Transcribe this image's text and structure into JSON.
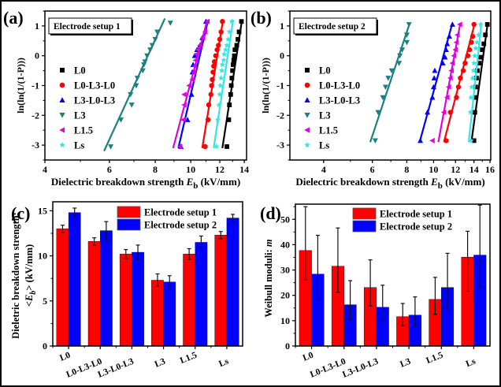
{
  "chart_data": [
    {
      "panel_label": "(a)",
      "type": "scatter",
      "title": "",
      "annotation": "Electrode setup 1",
      "xlabel": "Dielectric breakdown strength E_b (kV/mm)",
      "xlabel_parts": {
        "pre": "Dielectric breakdown strength ",
        "var": "E",
        "sub": "b",
        "post": " (kV/mm)"
      },
      "ylabel": "ln(ln(1/(1-P)))",
      "xscale": "log",
      "xlim": [
        4,
        14.2
      ],
      "ylim": [
        -3.5,
        1.5
      ],
      "xticks": [
        4,
        6,
        8,
        10,
        12,
        14
      ],
      "yticks": [
        -3,
        -2,
        -1,
        0,
        1
      ],
      "legend_position": "left",
      "series": [
        {
          "name": "L0",
          "color": "#000000",
          "marker": "square",
          "fit": [
            [
              12.2,
              -3.1
            ],
            [
              13.8,
              1.2
            ]
          ],
          "points": [
            [
              12.55,
              -3.05
            ],
            [
              12.7,
              -2.15
            ],
            [
              12.75,
              -1.65
            ],
            [
              12.85,
              -1.3
            ],
            [
              12.9,
              -1.0
            ],
            [
              12.95,
              -0.75
            ],
            [
              13.0,
              -0.5
            ],
            [
              13.05,
              -0.3
            ],
            [
              13.1,
              -0.15
            ],
            [
              13.15,
              0.0
            ],
            [
              13.2,
              0.2
            ],
            [
              13.35,
              0.35
            ],
            [
              13.45,
              0.55
            ],
            [
              13.55,
              0.8
            ],
            [
              13.75,
              1.15
            ]
          ]
        },
        {
          "name": "L0-L3-L0",
          "color": "#ff0000",
          "marker": "circle",
          "fit": [
            [
              10.75,
              -3.1
            ],
            [
              12.25,
              1.2
            ]
          ],
          "points": [
            [
              10.95,
              -3.05
            ],
            [
              11.15,
              -2.15
            ],
            [
              11.2,
              -1.65
            ],
            [
              11.35,
              -1.3
            ],
            [
              11.4,
              -1.0
            ],
            [
              11.45,
              -0.8
            ],
            [
              11.5,
              -0.55
            ],
            [
              11.55,
              -0.35
            ],
            [
              11.6,
              -0.2
            ],
            [
              11.7,
              0.0
            ],
            [
              11.8,
              0.2
            ],
            [
              11.9,
              0.35
            ],
            [
              12.0,
              0.55
            ],
            [
              12.1,
              0.8
            ],
            [
              12.2,
              1.15
            ]
          ]
        },
        {
          "name": "L3-L0-L3",
          "color": "#0000ff",
          "marker": "triangle-up",
          "fit": [
            [
              9.25,
              -3.1
            ],
            [
              11.15,
              1.2
            ]
          ],
          "points": [
            [
              9.4,
              -3.05
            ],
            [
              9.8,
              -2.15
            ],
            [
              10.05,
              -1.3
            ],
            [
              10.1,
              -0.55
            ],
            [
              10.15,
              -0.3
            ],
            [
              10.25,
              0.0
            ],
            [
              10.4,
              0.2
            ],
            [
              10.6,
              0.35
            ],
            [
              10.75,
              0.6
            ],
            [
              11.0,
              1.15
            ]
          ]
        },
        {
          "name": "L3",
          "color": "#1a8080",
          "marker": "triangle-down",
          "fit": [
            [
              5.8,
              -3.2
            ],
            [
              8.5,
              1.25
            ]
          ],
          "points": [
            [
              6.05,
              -3.05
            ],
            [
              6.45,
              -2.15
            ],
            [
              6.9,
              -1.65
            ],
            [
              6.85,
              -1.3
            ],
            [
              7.1,
              -1.0
            ],
            [
              7.15,
              -0.75
            ],
            [
              7.4,
              -0.5
            ],
            [
              7.45,
              -0.3
            ],
            [
              7.5,
              -0.2
            ],
            [
              7.6,
              0.0
            ],
            [
              7.75,
              0.2
            ],
            [
              7.85,
              0.35
            ],
            [
              8.0,
              0.55
            ],
            [
              8.1,
              0.8
            ],
            [
              8.8,
              1.1
            ]
          ]
        },
        {
          "name": "L1.5",
          "color": "#e000e0",
          "marker": "triangle-left",
          "fit": [
            [
              8.95,
              -3.1
            ],
            [
              11.1,
              1.2
            ]
          ],
          "points": [
            [
              9.35,
              -3.05
            ],
            [
              9.55,
              -2.15
            ],
            [
              9.6,
              -1.65
            ],
            [
              9.6,
              -1.3
            ],
            [
              9.9,
              -1.0
            ],
            [
              10.1,
              -0.8
            ],
            [
              10.2,
              -0.55
            ],
            [
              10.25,
              -0.35
            ],
            [
              10.3,
              -0.15
            ],
            [
              10.35,
              0.05
            ],
            [
              10.45,
              0.2
            ],
            [
              10.6,
              0.35
            ],
            [
              10.8,
              0.6
            ],
            [
              10.95,
              0.8
            ],
            [
              11.1,
              1.15
            ]
          ]
        },
        {
          "name": "Ls",
          "color": "#33e6e6",
          "marker": "star",
          "fit": [
            [
              11.55,
              -3.1
            ],
            [
              13.05,
              1.2
            ]
          ],
          "points": [
            [
              11.75,
              -3.05
            ],
            [
              11.85,
              -2.15
            ],
            [
              11.95,
              -1.65
            ],
            [
              12.0,
              -1.3
            ],
            [
              12.05,
              -1.0
            ],
            [
              12.1,
              -0.75
            ],
            [
              12.15,
              -0.5
            ],
            [
              12.2,
              -0.3
            ],
            [
              12.3,
              -0.15
            ],
            [
              12.35,
              0.05
            ],
            [
              12.45,
              0.2
            ],
            [
              12.55,
              0.35
            ],
            [
              12.65,
              0.55
            ],
            [
              12.75,
              0.8
            ],
            [
              12.95,
              1.15
            ]
          ]
        }
      ]
    },
    {
      "panel_label": "(b)",
      "type": "scatter",
      "title": "",
      "annotation": "Electrode setup 2",
      "xlabel": "Dielectric breakdown strength E_b (kV/mm)",
      "xlabel_parts": {
        "pre": "Dielectric breakdown strength ",
        "var": "E",
        "sub": "b",
        "post": " (kV/mm)"
      },
      "ylabel": "ln(ln(1/(1-P)))",
      "xscale": "log",
      "xlim": [
        3.02,
        16.1
      ],
      "ylim": [
        -3.5,
        1.5
      ],
      "xticks": [
        4,
        6,
        8,
        10,
        12,
        14,
        16
      ],
      "yticks": [
        -3,
        -2,
        -1,
        0,
        1
      ],
      "legend_position": "left",
      "series": [
        {
          "name": "L0",
          "color": "#000000",
          "marker": "square",
          "fit": [
            [
              13.7,
              -2.9
            ],
            [
              15.7,
              1.1
            ]
          ],
          "points": [
            [
              14.0,
              -2.85
            ],
            [
              14.1,
              -1.9
            ],
            [
              14.15,
              -1.4
            ],
            [
              14.2,
              -1.05
            ],
            [
              14.3,
              -0.75
            ],
            [
              14.4,
              -0.5
            ],
            [
              14.6,
              -0.25
            ],
            [
              14.8,
              -0.05
            ],
            [
              15.0,
              0.2
            ],
            [
              15.2,
              0.4
            ],
            [
              15.4,
              0.7
            ],
            [
              15.65,
              1.05
            ]
          ]
        },
        {
          "name": "L0-L3-L0",
          "color": "#ff0000",
          "marker": "circle",
          "fit": [
            [
              10.9,
              -2.9
            ],
            [
              14.1,
              1.1
            ]
          ],
          "points": [
            [
              11.1,
              -2.85
            ],
            [
              11.5,
              -1.9
            ],
            [
              12.1,
              -1.4
            ],
            [
              12.3,
              -1.05
            ],
            [
              12.5,
              -0.75
            ],
            [
              12.8,
              -0.5
            ],
            [
              13.0,
              -0.25
            ],
            [
              13.3,
              0.0
            ],
            [
              13.5,
              0.2
            ],
            [
              13.7,
              0.45
            ],
            [
              13.85,
              0.65
            ],
            [
              14.0,
              1.05
            ]
          ]
        },
        {
          "name": "L3-L0-L3",
          "color": "#0000ff",
          "marker": "triangle-up",
          "fit": [
            [
              8.9,
              -2.9
            ],
            [
              11.7,
              1.1
            ]
          ],
          "points": [
            [
              8.95,
              -2.85
            ],
            [
              9.5,
              -1.9
            ],
            [
              9.9,
              -1.4
            ],
            [
              10.0,
              -1.05
            ],
            [
              10.05,
              -0.75
            ],
            [
              10.1,
              -0.5
            ],
            [
              10.8,
              -0.25
            ],
            [
              11.0,
              -0.05
            ],
            [
              11.1,
              0.2
            ],
            [
              11.2,
              0.4
            ],
            [
              11.4,
              0.65
            ],
            [
              11.7,
              1.05
            ]
          ]
        },
        {
          "name": "L3",
          "color": "#1a8080",
          "marker": "triangle-down",
          "fit": [
            [
              5.9,
              -2.9
            ],
            [
              8.2,
              1.1
            ]
          ],
          "points": [
            [
              6.15,
              -2.85
            ],
            [
              6.3,
              -1.9
            ],
            [
              6.55,
              -1.4
            ],
            [
              6.7,
              -1.05
            ],
            [
              6.85,
              -0.75
            ],
            [
              7.05,
              -0.5
            ],
            [
              7.5,
              -0.25
            ],
            [
              7.55,
              0.0
            ],
            [
              7.7,
              0.2
            ],
            [
              8.0,
              0.45
            ],
            [
              8.0,
              0.7
            ],
            [
              8.15,
              1.05
            ]
          ]
        },
        {
          "name": "L1.5",
          "color": "#e000e0",
          "marker": "triangle-left",
          "fit": [
            [
              10.4,
              -2.9
            ],
            [
              12.5,
              1.1
            ]
          ],
          "points": [
            [
              9.9,
              -2.85
            ],
            [
              10.9,
              -1.9
            ],
            [
              11.2,
              -1.4
            ],
            [
              11.35,
              -1.05
            ],
            [
              11.5,
              -0.75
            ],
            [
              11.6,
              -0.5
            ],
            [
              11.7,
              -0.25
            ],
            [
              11.85,
              0.0
            ],
            [
              12.0,
              0.2
            ],
            [
              12.1,
              0.45
            ],
            [
              12.2,
              0.7
            ],
            [
              12.45,
              1.05
            ]
          ]
        },
        {
          "name": "Ls",
          "color": "#33e6e6",
          "marker": "star",
          "fit": [
            [
              13.4,
              -2.9
            ],
            [
              14.9,
              1.1
            ]
          ],
          "points": [
            [
              13.65,
              -2.85
            ],
            [
              13.6,
              -1.9
            ],
            [
              13.65,
              -1.4
            ],
            [
              13.75,
              -1.05
            ],
            [
              13.85,
              -0.75
            ],
            [
              13.95,
              -0.5
            ],
            [
              14.0,
              -0.25
            ],
            [
              14.1,
              0.0
            ],
            [
              14.2,
              0.25
            ],
            [
              14.35,
              0.45
            ],
            [
              14.55,
              0.7
            ],
            [
              14.8,
              1.05
            ]
          ]
        }
      ]
    },
    {
      "panel_label": "(c)",
      "type": "bar",
      "title": "",
      "xlabel": "",
      "ylabel_line1": "Dieletric breakdown strength:",
      "ylabel_line2": {
        "pre": "<",
        "var": "E",
        "sub": "b",
        "post": "> (kV/mm)"
      },
      "ylim": [
        0,
        16
      ],
      "yticks": [
        0,
        5,
        10,
        15
      ],
      "categories": [
        "L0",
        "L0-L3-L0",
        "L3-L0-L3",
        "L3",
        "L1.5",
        "Ls"
      ],
      "legend_position": "top-right",
      "series": [
        {
          "name": "Electrode setup 1",
          "color": "#ff0000",
          "values": [
            13.0,
            11.6,
            10.2,
            7.3,
            10.2,
            12.3
          ],
          "err_low": [
            12.6,
            11.2,
            9.7,
            6.6,
            9.6,
            11.9
          ],
          "err_high": [
            13.4,
            12.0,
            10.7,
            8.0,
            10.8,
            12.7
          ]
        },
        {
          "name": "Electrode setup 2",
          "color": "#0000ff",
          "values": [
            14.8,
            12.8,
            10.4,
            7.1,
            11.5,
            14.2
          ],
          "err_low": [
            14.3,
            11.8,
            9.6,
            6.4,
            10.8,
            13.8
          ],
          "err_high": [
            15.3,
            13.8,
            11.2,
            7.8,
            12.2,
            14.6
          ]
        }
      ]
    },
    {
      "panel_label": "(d)",
      "type": "bar",
      "title": "",
      "xlabel": "",
      "ylabel": "Weibull moduli: m",
      "ylabel_parts": {
        "pre": "Weibull moduli: ",
        "var": "m"
      },
      "ylim": [
        0,
        56
      ],
      "yticks": [
        0,
        10,
        20,
        30,
        40,
        50
      ],
      "categories": [
        "L0",
        "L0-L3-L0",
        "L3-L0-L3",
        "L3",
        "L1.5",
        "Ls"
      ],
      "legend_position": "top-right",
      "series": [
        {
          "name": "Electrode setup 1",
          "color": "#ff0000",
          "values": [
            37.7,
            31.5,
            23.1,
            11.6,
            18.4,
            35.1
          ],
          "err_low": [
            26.0,
            21.2,
            15.8,
            8.0,
            12.5,
            21.6
          ],
          "err_high": [
            55.0,
            46.6,
            34.0,
            16.8,
            27.1,
            45.3
          ]
        },
        {
          "name": "Electrode setup 2",
          "color": "#0000ff",
          "values": [
            28.4,
            16.3,
            15.3,
            12.2,
            23.1,
            35.9
          ],
          "err_low": [
            18.5,
            10.5,
            9.8,
            7.8,
            14.8,
            23.3
          ],
          "err_high": [
            43.7,
            25.8,
            24.0,
            19.4,
            36.6,
            55.6
          ]
        }
      ]
    }
  ]
}
